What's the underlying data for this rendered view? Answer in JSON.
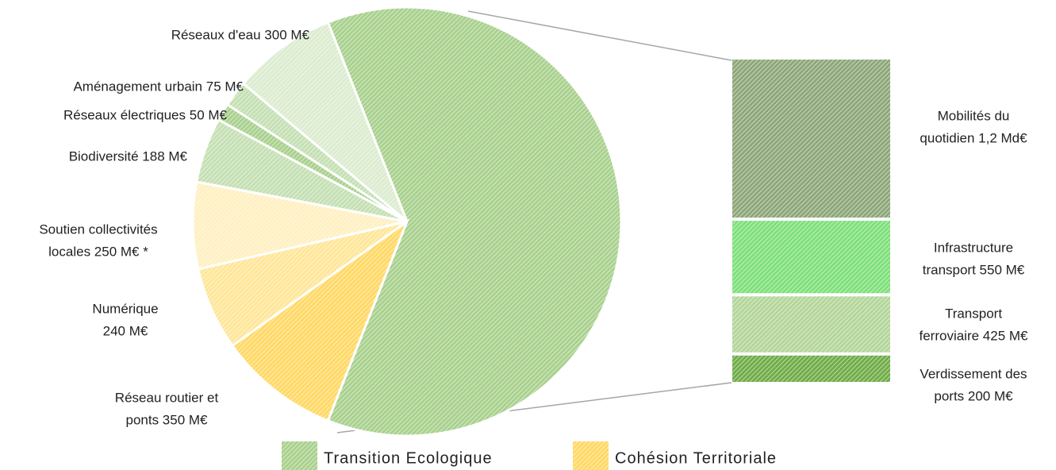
{
  "chart_data": {
    "type": "pie",
    "series": [
      {
        "name": "Transition Ecologique",
        "color": "#a9d18e"
      },
      {
        "name": "Cohésion Territoriale",
        "color": "#ffd966"
      }
    ],
    "slices": [
      {
        "label": [
          "Réseau routier et",
          "ponts 350 M€"
        ],
        "value": 350,
        "color": "#ffd966"
      },
      {
        "label": [
          "Numérique",
          "240 M€"
        ],
        "value": 240,
        "color": "#ffe699"
      },
      {
        "label": [
          "Soutien collectivités",
          "locales 250 M€ *"
        ],
        "value": 250,
        "color": "#fff0c2"
      },
      {
        "label": [
          "Biodiversité 188 M€"
        ],
        "value": 188,
        "color": "#c5e0b4"
      },
      {
        "label": [
          "Réseaux électriques 50 M€"
        ],
        "value": 50,
        "color": "#a9d18e"
      },
      {
        "label": [
          "Aménagement urbain 75 M€"
        ],
        "value": 75,
        "color": "#c5e0b4"
      },
      {
        "label": [
          "Réseaux d'eau 300 M€"
        ],
        "value": 300,
        "color": "#dcecd0"
      }
    ],
    "group_color": "#a9d18e",
    "bar": [
      {
        "label": [
          "Mobilités du",
          "quotidien 1,2 Md€"
        ],
        "value": 1200,
        "color": "#8ea77a"
      },
      {
        "label": [
          "Infrastructure",
          "transport 550 M€"
        ],
        "value": 550,
        "color": "#7ee07a"
      },
      {
        "label": [
          "Transport",
          "ferroviaire 425 M€"
        ],
        "value": 425,
        "color": "#b3d69a"
      },
      {
        "label": [
          "Verdissement des",
          "ports 200 M€"
        ],
        "value": 200,
        "color": "#70ad47"
      }
    ]
  }
}
